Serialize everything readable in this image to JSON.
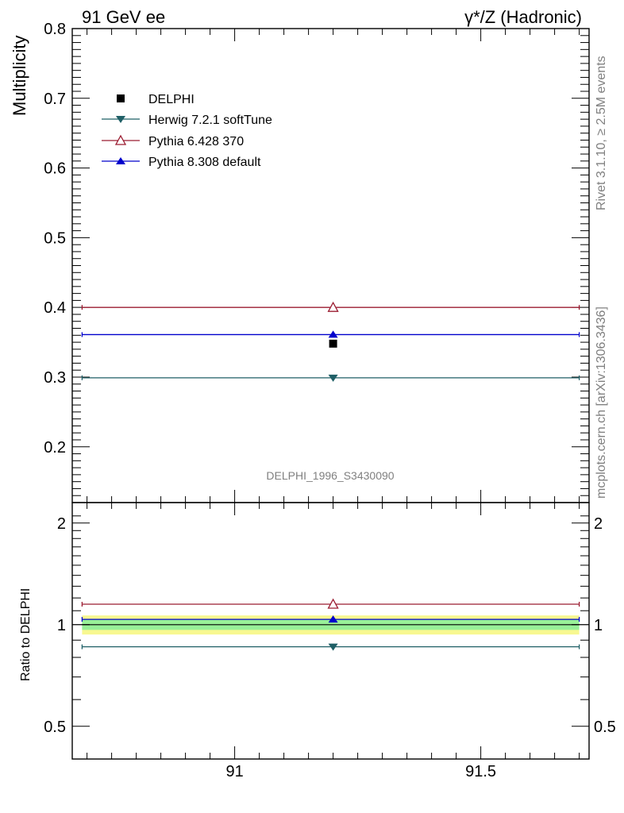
{
  "header": {
    "left": "91 GeV ee",
    "right": "γ*/Z (Hadronic)"
  },
  "side": {
    "rivet": "Rivet 3.1.10, ≥ 2.5M events",
    "mcplots": "mcplots.cern.ch [arXiv:1306.3436]"
  },
  "watermark": "DELPHI_1996_S3430090",
  "legend": {
    "entries": [
      "DELPHI",
      "Herwig 7.2.1 softTune",
      "Pythia 6.428 370",
      "Pythia 8.308 default"
    ]
  },
  "colors": {
    "delphi": "#000000",
    "herwig": "#1f5f66",
    "pythia6": "#9b1c31",
    "pythia8": "#0000cc",
    "band_inner": "#98f098",
    "band_outer": "#f8f890"
  },
  "chart_data": [
    {
      "type": "scatter",
      "panel": "main",
      "ylabel": "Multiplicity",
      "xlim": [
        90.67,
        91.72
      ],
      "ylim": [
        0.12,
        0.8
      ],
      "yticks": [
        0.2,
        0.3,
        0.4,
        0.5,
        0.6,
        0.7,
        0.8
      ],
      "ytick_labels": [
        "0.2",
        "0.3",
        "0.4",
        "0.5",
        "0.6",
        "0.7",
        "0.8"
      ],
      "series": [
        {
          "name": "DELPHI",
          "marker": "square",
          "x": [
            91.2
          ],
          "y": [
            0.348
          ],
          "xerr": [
            0.0
          ]
        },
        {
          "name": "Herwig 7.2.1 softTune",
          "marker": "triangle-down",
          "x": [
            91.2
          ],
          "y": [
            0.299
          ],
          "xrange": [
            90.69,
            91.7
          ]
        },
        {
          "name": "Pythia 6.428 370",
          "marker": "triangle-open",
          "x": [
            91.2
          ],
          "y": [
            0.4
          ],
          "xrange": [
            90.69,
            91.7
          ]
        },
        {
          "name": "Pythia 8.308 default",
          "marker": "triangle-up",
          "x": [
            91.2
          ],
          "y": [
            0.361
          ],
          "xrange": [
            90.69,
            91.7
          ]
        }
      ]
    },
    {
      "type": "scatter",
      "panel": "ratio",
      "ylabel": "Ratio to DELPHI",
      "xlim": [
        90.67,
        91.72
      ],
      "xticks": [
        91,
        91.5
      ],
      "xtick_labels": [
        "91",
        "91.5"
      ],
      "ylim": [
        0.4,
        2.3
      ],
      "log_y": true,
      "yticks": [
        0.5,
        1,
        2
      ],
      "ytick_labels": [
        "0.5",
        "1",
        "2"
      ],
      "band": {
        "inner": [
          0.965,
          1.035
        ],
        "outer": [
          0.935,
          1.065
        ]
      },
      "series": [
        {
          "name": "Herwig 7.2.1 softTune",
          "x": [
            91.2
          ],
          "y": [
            0.86
          ]
        },
        {
          "name": "Pythia 6.428 370",
          "x": [
            91.2
          ],
          "y": [
            1.15
          ]
        },
        {
          "name": "Pythia 8.308 default",
          "x": [
            91.2
          ],
          "y": [
            1.037
          ]
        }
      ]
    }
  ]
}
